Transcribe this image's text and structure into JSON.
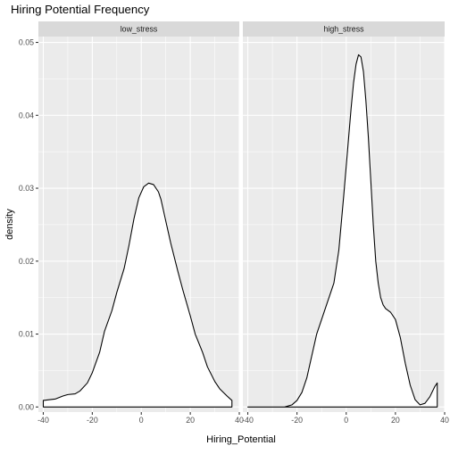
{
  "chart_data": {
    "type": "area",
    "title": "Hiring Potential Frequency",
    "xlabel": "Hiring_Potential",
    "ylabel": "density",
    "xlim": [
      -42,
      40
    ],
    "ylim": [
      -0.0007,
      0.0508
    ],
    "x_ticks": [
      -40,
      -20,
      0,
      20,
      40
    ],
    "x_tick_labels": [
      "-40",
      "-20",
      "0",
      "20",
      "40"
    ],
    "y_ticks": [
      0,
      0.01,
      0.02,
      0.03,
      0.04,
      0.05
    ],
    "y_tick_labels": [
      "0.00",
      "0.01",
      "0.02",
      "0.03",
      "0.04",
      "0.05"
    ],
    "grid": true,
    "facets": [
      "low_stress",
      "high_stress"
    ],
    "series": [
      {
        "facet": "low_stress",
        "x": [
          -40,
          -35,
          -32,
          -30,
          -27,
          -25,
          -22,
          -20,
          -17,
          -15,
          -12,
          -10,
          -7,
          -5,
          -3,
          -1,
          1,
          3,
          5,
          7,
          8,
          10,
          12,
          15,
          17,
          20,
          22,
          25,
          27,
          30,
          32,
          35,
          37
        ],
        "y": [
          0.0009,
          0.0011,
          0.0015,
          0.0017,
          0.0018,
          0.0022,
          0.0033,
          0.0047,
          0.0075,
          0.0104,
          0.0132,
          0.0157,
          0.019,
          0.0222,
          0.0258,
          0.0287,
          0.0302,
          0.0307,
          0.0305,
          0.0295,
          0.0285,
          0.0255,
          0.0225,
          0.0185,
          0.016,
          0.0125,
          0.01,
          0.0075,
          0.0055,
          0.0035,
          0.0025,
          0.0015,
          0.0009
        ]
      },
      {
        "facet": "high_stress",
        "x": [
          -40,
          -25,
          -22,
          -20,
          -18,
          -16,
          -14,
          -12,
          -10,
          -8,
          -5,
          -3,
          -1,
          1,
          2,
          3,
          4,
          5,
          6,
          7,
          8,
          9,
          10,
          11,
          12,
          13,
          14,
          15,
          16,
          18,
          20,
          22,
          24,
          26,
          28,
          30,
          32,
          34,
          36,
          37
        ],
        "y": [
          0,
          0,
          0.0003,
          0.0009,
          0.002,
          0.004,
          0.007,
          0.01,
          0.012,
          0.014,
          0.017,
          0.0215,
          0.029,
          0.037,
          0.041,
          0.0445,
          0.047,
          0.0483,
          0.048,
          0.046,
          0.042,
          0.037,
          0.031,
          0.025,
          0.02,
          0.017,
          0.015,
          0.014,
          0.0135,
          0.013,
          0.012,
          0.0095,
          0.006,
          0.003,
          0.001,
          0.0003,
          0.0005,
          0.0014,
          0.0028,
          0.0033
        ]
      }
    ]
  }
}
